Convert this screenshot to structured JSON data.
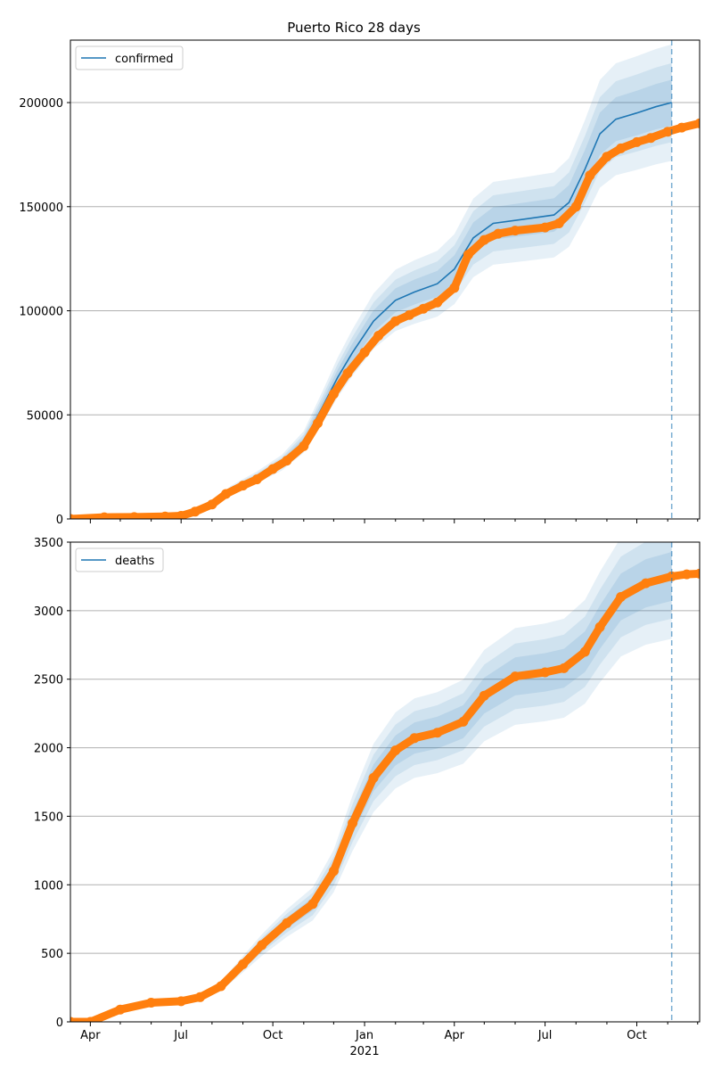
{
  "figure": {
    "title": "Puerto Rico 28 days"
  },
  "colors": {
    "model": "#1f77b4",
    "observed": "#ff7f0e",
    "band": "#1f77b4",
    "forecast_line": "#1f77b4",
    "grid": "#b0b0b0"
  },
  "chart_data": [
    {
      "type": "line",
      "panel": "top",
      "title": "Puerto Rico 28 days",
      "legend": [
        "confirmed"
      ],
      "legend_position": "top-left",
      "grid": "horizontal",
      "x_range": [
        "2020-03-12",
        "2021-12-03"
      ],
      "forecast_date": "2021-11-05",
      "ylim": [
        0,
        230000
      ],
      "yticks": [
        "0",
        "50000",
        "100000",
        "150000",
        "200000"
      ],
      "ytick_values": [
        0,
        50000,
        100000,
        150000,
        200000
      ],
      "xticks": [],
      "xtick_positions": [
        "2020-04-01",
        "2020-07-01",
        "2020-10-01",
        "2021-01-01",
        "2021-04-01",
        "2021-07-01",
        "2021-10-01"
      ],
      "series": [
        {
          "name": "confirmed",
          "role": "model",
          "x": [
            "2020-03-12",
            "2020-05-01",
            "2020-06-15",
            "2020-07-15",
            "2020-08-01",
            "2020-08-20",
            "2020-09-15",
            "2020-10-10",
            "2020-11-01",
            "2020-11-20",
            "2020-12-05",
            "2020-12-20",
            "2021-01-10",
            "2021-02-01",
            "2021-02-20",
            "2021-03-15",
            "2021-04-01",
            "2021-04-20",
            "2021-05-10",
            "2021-06-10",
            "2021-07-10",
            "2021-07-25",
            "2021-08-10",
            "2021-08-25",
            "2021-09-10",
            "2021-10-01",
            "2021-10-20",
            "2021-11-05"
          ],
          "y": [
            0,
            1000,
            1500,
            3000,
            7000,
            14000,
            20000,
            27000,
            37000,
            54000,
            68000,
            80000,
            95000,
            105000,
            109000,
            113000,
            120000,
            135000,
            142000,
            144000,
            146000,
            152000,
            168000,
            185000,
            192000,
            195000,
            198000,
            200000
          ]
        },
        {
          "name": "observed",
          "role": "observed",
          "x": [
            "2020-03-12",
            "2020-04-15",
            "2020-05-15",
            "2020-06-15",
            "2020-07-01",
            "2020-07-15",
            "2020-08-01",
            "2020-08-15",
            "2020-09-01",
            "2020-09-15",
            "2020-10-01",
            "2020-10-15",
            "2020-11-01",
            "2020-11-15",
            "2020-12-01",
            "2020-12-15",
            "2021-01-01",
            "2021-01-15",
            "2021-02-01",
            "2021-02-15",
            "2021-03-01",
            "2021-03-15",
            "2021-04-01",
            "2021-04-15",
            "2021-05-01",
            "2021-05-15",
            "2021-06-01",
            "2021-07-01",
            "2021-07-15",
            "2021-08-01",
            "2021-08-15",
            "2021-09-01",
            "2021-09-15",
            "2021-10-01",
            "2021-10-15",
            "2021-11-01",
            "2021-11-15",
            "2021-12-03"
          ],
          "y": [
            0,
            800,
            900,
            1200,
            1500,
            3500,
            7000,
            12000,
            16000,
            19000,
            24000,
            28000,
            35000,
            46000,
            60000,
            70000,
            80000,
            88000,
            95000,
            98000,
            101000,
            104000,
            111000,
            127000,
            134000,
            137000,
            138500,
            140000,
            142000,
            150000,
            165000,
            174000,
            178000,
            181000,
            183000,
            186000,
            188000,
            190000
          ]
        }
      ]
    },
    {
      "type": "line",
      "panel": "bottom",
      "legend": [
        "deaths"
      ],
      "legend_position": "top-left",
      "grid": "horizontal",
      "x_range": [
        "2020-03-12",
        "2021-12-03"
      ],
      "forecast_date": "2021-11-05",
      "ylim": [
        0,
        3500
      ],
      "yticks": [
        "0",
        "500",
        "1000",
        "1500",
        "2000",
        "2500",
        "3000",
        "3500"
      ],
      "ytick_values": [
        0,
        500,
        1000,
        1500,
        2000,
        2500,
        3000,
        3500
      ],
      "xticks": [
        "Apr",
        "Jul",
        "Oct",
        "Jan",
        "Apr",
        "Jul",
        "Oct"
      ],
      "xtick_positions": [
        "2020-04-01",
        "2020-07-01",
        "2020-10-01",
        "2021-01-01",
        "2021-04-01",
        "2021-07-01",
        "2021-10-01"
      ],
      "year_label": "2021",
      "series": [
        {
          "name": "deaths",
          "role": "model",
          "x": [
            "2020-03-12",
            "2020-04-01",
            "2020-05-01",
            "2020-06-01",
            "2020-07-01",
            "2020-07-20",
            "2020-08-10",
            "2020-09-01",
            "2020-09-20",
            "2020-10-15",
            "2020-11-10",
            "2020-12-01",
            "2020-12-20",
            "2021-01-10",
            "2021-02-01",
            "2021-02-20",
            "2021-03-15",
            "2021-04-10",
            "2021-05-01",
            "2021-06-01",
            "2021-07-01",
            "2021-07-20",
            "2021-08-10",
            "2021-08-25",
            "2021-09-15",
            "2021-10-10",
            "2021-11-05"
          ],
          "y": [
            0,
            0,
            90,
            140,
            150,
            180,
            260,
            420,
            560,
            720,
            860,
            1100,
            1450,
            1780,
            1980,
            2070,
            2110,
            2190,
            2380,
            2520,
            2550,
            2580,
            2700,
            2880,
            3100,
            3200,
            3250
          ]
        },
        {
          "name": "observed",
          "role": "observed",
          "x": [
            "2020-03-12",
            "2020-04-01",
            "2020-05-01",
            "2020-06-01",
            "2020-07-01",
            "2020-07-20",
            "2020-08-10",
            "2020-09-01",
            "2020-09-20",
            "2020-10-15",
            "2020-11-10",
            "2020-12-01",
            "2020-12-20",
            "2021-01-10",
            "2021-02-01",
            "2021-02-20",
            "2021-03-15",
            "2021-04-10",
            "2021-05-01",
            "2021-06-01",
            "2021-07-01",
            "2021-07-20",
            "2021-08-10",
            "2021-08-25",
            "2021-09-15",
            "2021-10-10",
            "2021-11-05",
            "2021-11-20",
            "2021-12-03"
          ],
          "y": [
            0,
            0,
            90,
            140,
            150,
            180,
            260,
            420,
            560,
            720,
            860,
            1100,
            1450,
            1780,
            1980,
            2070,
            2110,
            2190,
            2380,
            2520,
            2550,
            2580,
            2700,
            2880,
            3100,
            3200,
            3250,
            3265,
            3270
          ]
        }
      ]
    }
  ]
}
